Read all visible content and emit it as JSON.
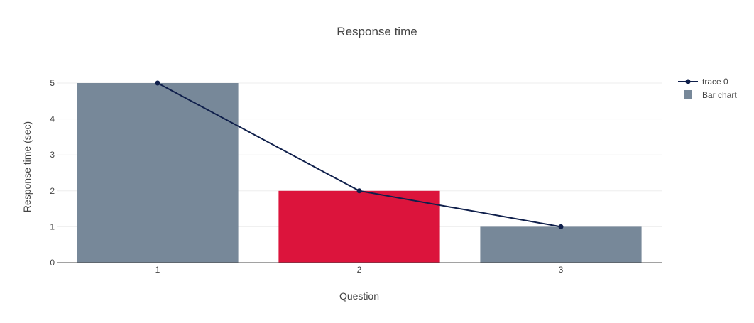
{
  "chart_data": {
    "type": "bar",
    "title": "Response time",
    "xlabel": "Question",
    "ylabel": "Response time (sec)",
    "categories": [
      "1",
      "2",
      "3"
    ],
    "ylim": [
      0,
      5
    ],
    "yticks": [
      0,
      1,
      2,
      3,
      4,
      5
    ],
    "grid": true,
    "legend_position": "top-right",
    "series": [
      {
        "name": "trace 0",
        "type": "line",
        "markers": true,
        "values": [
          5,
          2,
          1
        ],
        "color": "#0f1f4b"
      },
      {
        "name": "Bar chart",
        "type": "bar",
        "values": [
          5,
          2,
          1
        ],
        "colors": [
          "#778899",
          "#dc143c",
          "#778899"
        ],
        "legend_color": "#778899"
      }
    ]
  }
}
